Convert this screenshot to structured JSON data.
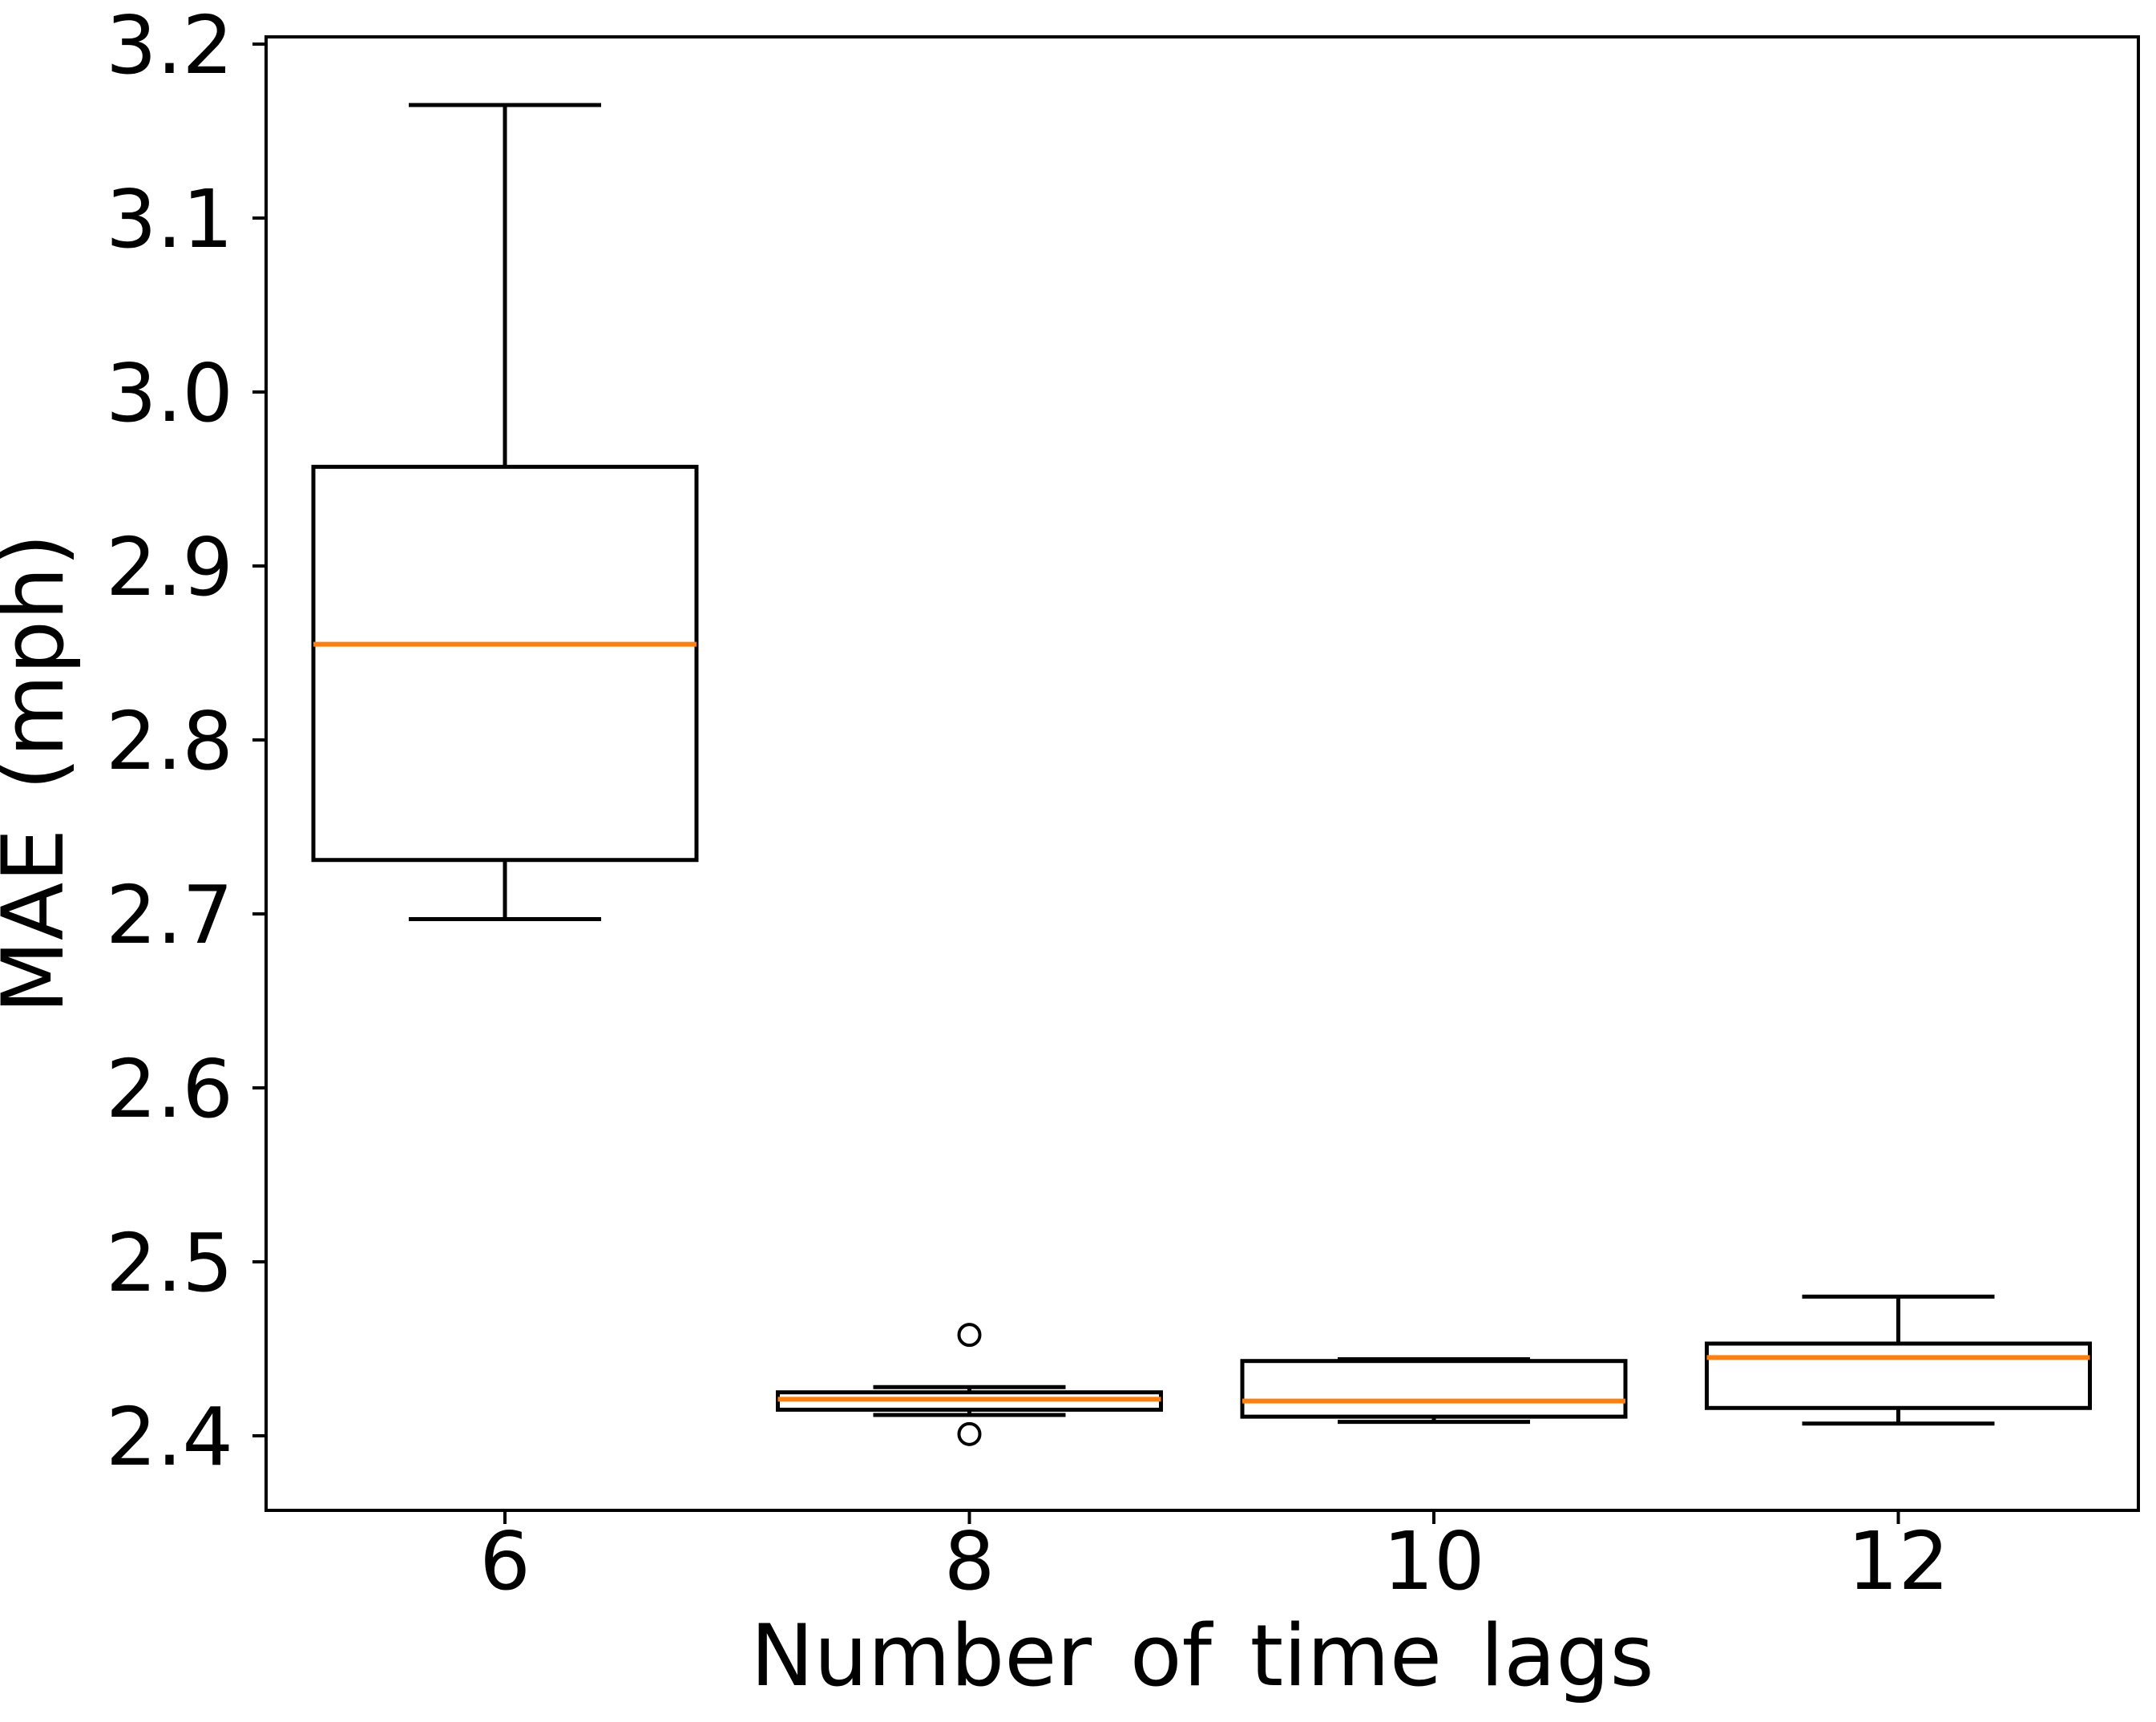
{
  "chart_data": {
    "type": "boxplot",
    "title": "",
    "xlabel": "Number of time lags",
    "ylabel": "MAE (mph)",
    "categories": [
      "6",
      "8",
      "10",
      "12"
    ],
    "ytick_labels": [
      "3.2",
      "3.1",
      "3.0",
      "2.9",
      "2.8",
      "2.7",
      "2.6",
      "2.5",
      "2.4"
    ],
    "yticks": [
      3.2,
      3.1,
      3.0,
      2.9,
      2.8,
      2.7,
      2.6,
      2.5,
      2.4
    ],
    "ylim": [
      2.357,
      3.204
    ],
    "grid": false,
    "legend": "none",
    "colors": {
      "box_line": "#000000",
      "median_line": "#ff7f0e",
      "spine": "#000000",
      "background": "#ffffff"
    },
    "series": [
      {
        "category": "6",
        "whisker_low": 2.697,
        "q1": 2.731,
        "median": 2.855,
        "q3": 2.957,
        "whisker_high": 3.165,
        "fliers": []
      },
      {
        "category": "8",
        "whisker_low": 2.412,
        "q1": 2.415,
        "median": 2.421,
        "q3": 2.425,
        "whisker_high": 2.428,
        "fliers": [
          2.458,
          2.401
        ]
      },
      {
        "category": "10",
        "whisker_low": 2.408,
        "q1": 2.411,
        "median": 2.42,
        "q3": 2.443,
        "whisker_high": 2.444,
        "fliers": []
      },
      {
        "category": "12",
        "whisker_low": 2.407,
        "q1": 2.416,
        "median": 2.445,
        "q3": 2.453,
        "whisker_high": 2.48,
        "fliers": []
      }
    ]
  }
}
